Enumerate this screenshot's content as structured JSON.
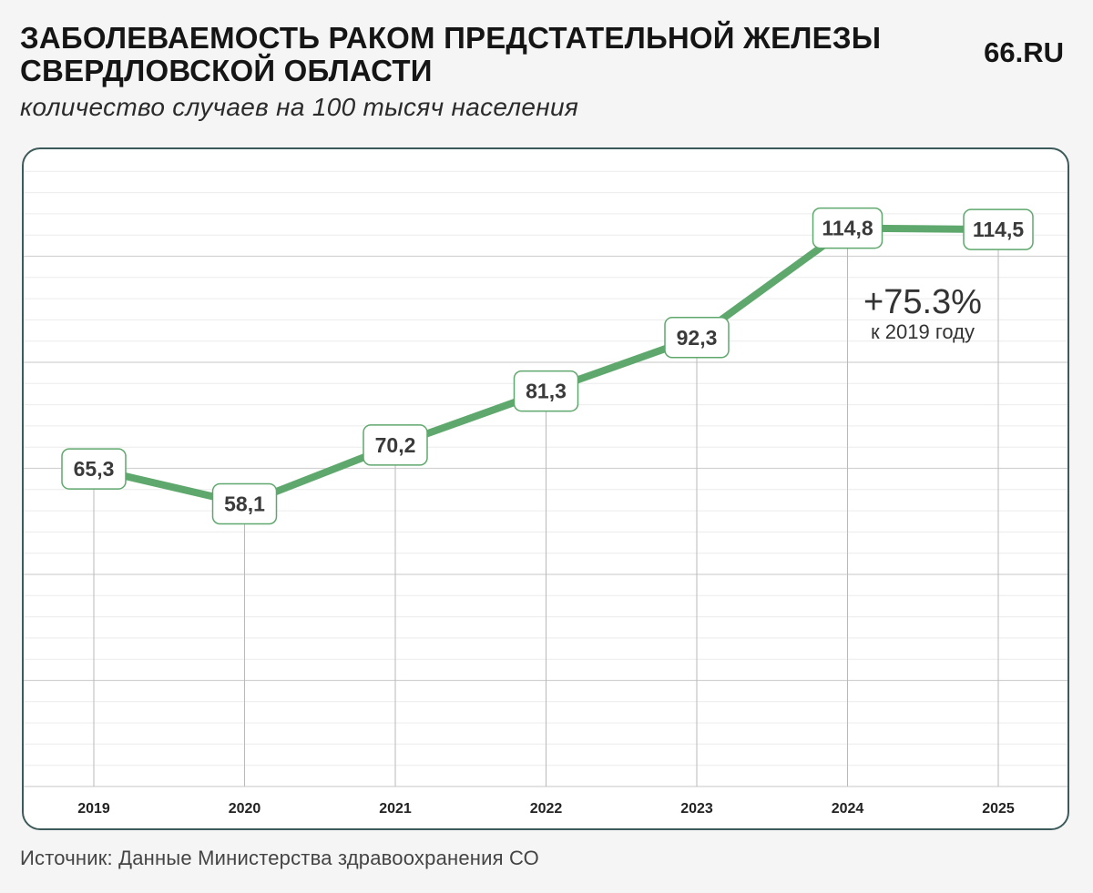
{
  "header": {
    "title_line1": "ЗАБОЛЕВАЕМОСТЬ РАКОМ ПРЕДСТАТЕЛЬНОЙ ЖЕЛЕЗЫ",
    "title_line2": "СВЕРДЛОВСКОЙ ОБЛАСТИ",
    "subtitle": "количество случаев на 100 тысяч населения",
    "brand": "66.RU"
  },
  "footer": {
    "source": "Источник: Данные Министерства здравоохранения СО"
  },
  "annotation": {
    "value": "+75.3%",
    "caption": "к 2019 году"
  },
  "colors": {
    "line": "#5fa86d",
    "label_border": "#5fa86d",
    "panel_border": "#3d5a5a"
  },
  "chart_data": {
    "type": "line",
    "title": "ЗАБОЛЕВАЕМОСТЬ РАКОМ ПРЕДСТАТЕЛЬНОЙ ЖЕЛЕЗЫ СВЕРДЛОВСКОЙ ОБЛАСТИ",
    "subtitle": "количество случаев на 100 тысяч населения",
    "x": [
      "2019",
      "2020",
      "2021",
      "2022",
      "2023",
      "2024",
      "2025"
    ],
    "series": [
      {
        "values": [
          65.3,
          58.1,
          70.2,
          81.3,
          92.3,
          114.8,
          114.5
        ],
        "labels": [
          "65,3",
          "58,1",
          "70,2",
          "81,3",
          "92,3",
          "114,8",
          "114,5"
        ]
      }
    ],
    "ylim": [
      0,
      131
    ],
    "grid": true,
    "legend": "none"
  }
}
